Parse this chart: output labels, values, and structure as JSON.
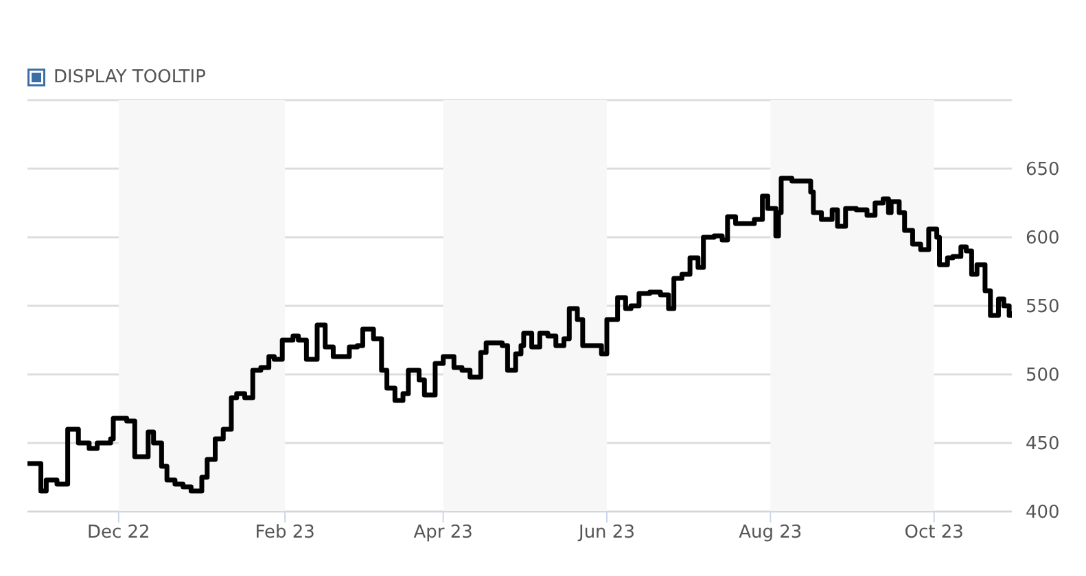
{
  "chart_data": {
    "type": "step",
    "annotations": [
      "DISPLAY TOOLTIP"
    ],
    "x": [
      "2022-10-28",
      "2022-11-02",
      "2022-11-04",
      "2022-11-08",
      "2022-11-12",
      "2022-11-16",
      "2022-11-20",
      "2022-11-23",
      "2022-11-28",
      "2022-11-29",
      "2022-12-04",
      "2022-12-07",
      "2022-12-12",
      "2022-12-14",
      "2022-12-17",
      "2022-12-19",
      "2022-12-22",
      "2022-12-25",
      "2022-12-28",
      "2023-01-01",
      "2023-01-03",
      "2023-01-06",
      "2023-01-09",
      "2023-01-12",
      "2023-01-14",
      "2023-01-17",
      "2023-01-20",
      "2023-01-23",
      "2023-01-26",
      "2023-01-28",
      "2023-01-31",
      "2023-02-04",
      "2023-02-06",
      "2023-02-09",
      "2023-02-13",
      "2023-02-16",
      "2023-02-19",
      "2023-02-23",
      "2023-02-25",
      "2023-02-28",
      "2023-03-02",
      "2023-03-06",
      "2023-03-09",
      "2023-03-11",
      "2023-03-14",
      "2023-03-17",
      "2023-03-19",
      "2023-03-23",
      "2023-03-25",
      "2023-03-29",
      "2023-04-01",
      "2023-04-05",
      "2023-04-08",
      "2023-04-11",
      "2023-04-15",
      "2023-04-17",
      "2023-04-23",
      "2023-04-25",
      "2023-04-28",
      "2023-04-30",
      "2023-05-01",
      "2023-05-04",
      "2023-05-07",
      "2023-05-10",
      "2023-05-13",
      "2023-05-16",
      "2023-05-18",
      "2023-05-21",
      "2023-05-23",
      "2023-05-27",
      "2023-05-30",
      "2023-06-01",
      "2023-06-05",
      "2023-06-08",
      "2023-06-10",
      "2023-06-13",
      "2023-06-17",
      "2023-06-21",
      "2023-06-24",
      "2023-06-26",
      "2023-06-29",
      "2023-07-02",
      "2023-07-05",
      "2023-07-07",
      "2023-07-11",
      "2023-07-14",
      "2023-07-16",
      "2023-07-19",
      "2023-07-24",
      "2023-07-26",
      "2023-07-29",
      "2023-07-31",
      "2023-08-03",
      "2023-08-04",
      "2023-08-05",
      "2023-08-09",
      "2023-08-14",
      "2023-08-16",
      "2023-08-17",
      "2023-08-20",
      "2023-08-22",
      "2023-08-24",
      "2023-08-26",
      "2023-08-29",
      "2023-09-02",
      "2023-09-06",
      "2023-09-09",
      "2023-09-12",
      "2023-09-14",
      "2023-09-15",
      "2023-09-18",
      "2023-09-20",
      "2023-09-23",
      "2023-09-26",
      "2023-09-29",
      "2023-10-02",
      "2023-10-03",
      "2023-10-06",
      "2023-10-08",
      "2023-10-11",
      "2023-10-13",
      "2023-10-15",
      "2023-10-17",
      "2023-10-20",
      "2023-10-22",
      "2023-10-25",
      "2023-10-27",
      "2023-10-29",
      "2023-10-30"
    ],
    "series": [
      {
        "color": "#000000",
        "values": [
          435,
          415,
          423,
          420,
          460,
          450,
          446,
          450,
          453,
          468,
          466,
          440,
          458,
          450,
          433,
          423,
          420,
          418,
          415,
          425,
          438,
          453,
          460,
          483,
          486,
          483,
          503,
          505,
          513,
          511,
          525,
          528,
          525,
          511,
          536,
          520,
          513,
          513,
          520,
          521,
          533,
          526,
          503,
          490,
          481,
          486,
          503,
          496,
          485,
          508,
          513,
          505,
          503,
          498,
          516,
          523,
          521,
          503,
          515,
          521,
          530,
          520,
          530,
          528,
          521,
          526,
          548,
          540,
          521,
          521,
          515,
          540,
          556,
          548,
          550,
          559,
          560,
          558,
          548,
          570,
          573,
          585,
          578,
          600,
          601,
          598,
          615,
          610,
          610,
          613,
          630,
          621,
          601,
          618,
          643,
          641,
          641,
          633,
          618,
          613,
          613,
          620,
          608,
          621,
          620,
          616,
          625,
          628,
          618,
          626,
          618,
          605,
          595,
          591,
          606,
          600,
          580,
          585,
          586,
          593,
          590,
          573,
          580,
          561,
          543,
          555,
          550,
          543,
          546
        ]
      }
    ],
    "xlim": [
      "2022-10-28",
      "2023-10-30"
    ],
    "xticks": [
      {
        "value": "2022-12-01",
        "label": "Dec 22"
      },
      {
        "value": "2023-02-01",
        "label": "Feb 23"
      },
      {
        "value": "2023-04-01",
        "label": "Apr 23"
      },
      {
        "value": "2023-06-01",
        "label": "Jun 23"
      },
      {
        "value": "2023-08-01",
        "label": "Aug 23"
      },
      {
        "value": "2023-10-01",
        "label": "Oct 23"
      }
    ],
    "ylim": [
      400,
      700
    ],
    "yticks": [
      400,
      450,
      500,
      550,
      600,
      650,
      {
        "value": 700,
        "label": null
      }
    ],
    "grid": "y",
    "legend": false,
    "line_style": "solid",
    "marker": "none",
    "bands": [
      {
        "axis": "x",
        "from": "2022-12-01",
        "to": "2023-02-01",
        "color": "#f7f7f7"
      },
      {
        "axis": "x",
        "from": "2023-04-01",
        "to": "2023-06-01",
        "color": "#f7f7f7"
      },
      {
        "axis": "x",
        "from": "2023-08-01",
        "to": "2023-10-01",
        "color": "#f7f7f7"
      }
    ]
  }
}
